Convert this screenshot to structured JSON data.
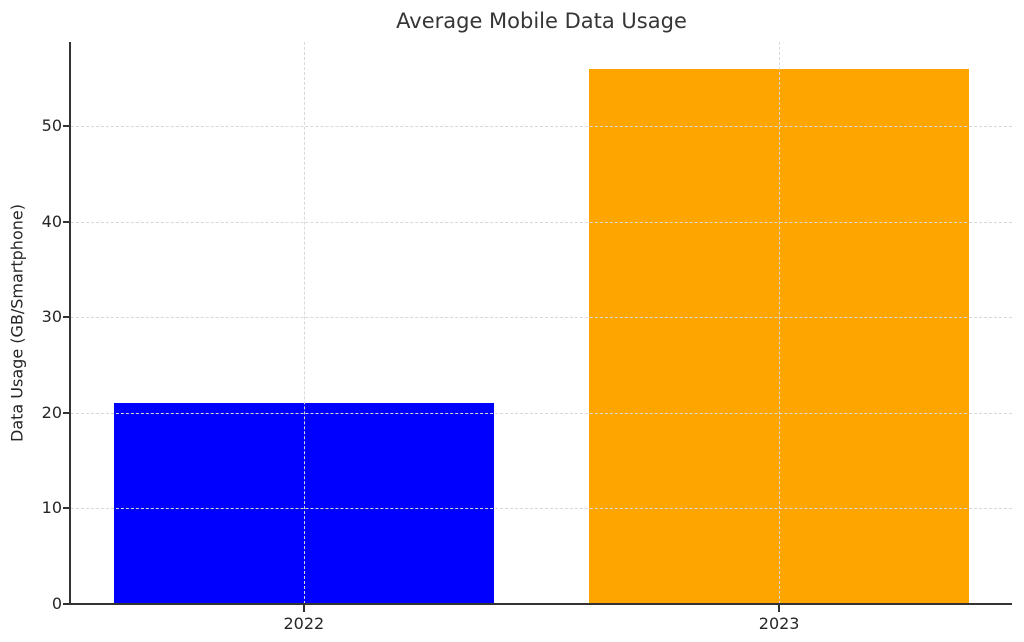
{
  "chart_data": {
    "type": "bar",
    "title": "Average Mobile Data Usage",
    "xlabel": "",
    "ylabel": "Data Usage (GB/Smartphone)",
    "categories": [
      "2022",
      "2023"
    ],
    "values": [
      21,
      56
    ],
    "bar_colors": [
      "#0000ff",
      "#ffa500"
    ],
    "ylim": [
      0,
      58.8
    ],
    "yticks": [
      0,
      10,
      20,
      30,
      40,
      50
    ],
    "bar_width_fraction": 0.8,
    "grid": "dashed gray gridlines, horizontal at y-ticks and vertical at category centers, drawn above bars",
    "legend": "none",
    "spines": "left and bottom only"
  },
  "style": {
    "background_color": "#ffffff",
    "text_color": "#262626",
    "title_color": "#363636",
    "grid_color": "#d8d8d8",
    "spine_color": "#333333"
  }
}
